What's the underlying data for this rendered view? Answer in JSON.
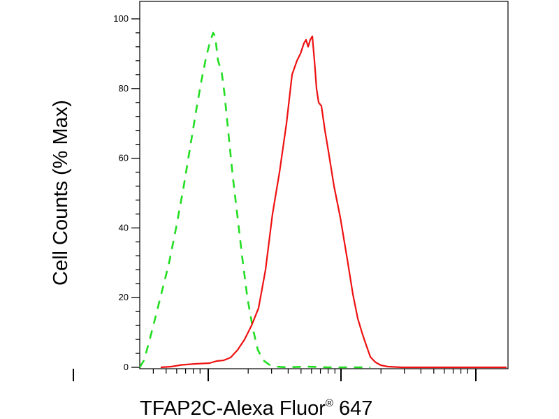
{
  "chart_data": {
    "type": "line",
    "xlabel": "TFAP2C-Alexa Fluor",
    "xlabel_superscript": "®",
    "xlabel_suffix": " 647",
    "ylabel": "Cell Counts (% Max)",
    "x_scale": "log",
    "ylim": [
      0,
      100
    ],
    "y_ticks": [
      {
        "value": 0,
        "label": "0"
      },
      {
        "value": 20,
        "label": "20"
      },
      {
        "value": 40,
        "label": "40"
      },
      {
        "value": 60,
        "label": "60"
      },
      {
        "value": 80,
        "label": "80"
      },
      {
        "value": 100,
        "label": "100"
      }
    ],
    "grid": false,
    "legend": "none",
    "series": [
      {
        "color": "#22dd22",
        "style": "dashed",
        "points": [
          [
            200,
            0
          ],
          [
            206,
            2
          ],
          [
            213,
            7
          ],
          [
            222,
            14
          ],
          [
            232,
            22
          ],
          [
            242,
            30
          ],
          [
            252,
            40
          ],
          [
            263,
            52
          ],
          [
            272,
            63
          ],
          [
            281,
            74
          ],
          [
            288,
            82
          ],
          [
            295,
            89
          ],
          [
            300,
            93
          ],
          [
            305,
            96
          ],
          [
            308,
            95
          ],
          [
            312,
            88
          ],
          [
            317,
            85
          ],
          [
            321,
            79
          ],
          [
            327,
            67
          ],
          [
            333,
            55
          ],
          [
            340,
            43
          ],
          [
            347,
            31
          ],
          [
            354,
            20
          ],
          [
            362,
            11
          ],
          [
            369,
            5
          ],
          [
            377,
            2
          ],
          [
            385,
            0.8
          ],
          [
            395,
            0.2
          ],
          [
            410,
            0
          ],
          [
            440,
            0.2
          ],
          [
            470,
            0
          ],
          [
            500,
            0
          ],
          [
            530,
            0
          ]
        ]
      },
      {
        "color": "#ee1111",
        "style": "solid",
        "points": [
          [
            230,
            0
          ],
          [
            245,
            0.2
          ],
          [
            260,
            0.7
          ],
          [
            280,
            1
          ],
          [
            300,
            1.2
          ],
          [
            310,
            1.8
          ],
          [
            320,
            2
          ],
          [
            330,
            2.8
          ],
          [
            340,
            5
          ],
          [
            350,
            8
          ],
          [
            360,
            12
          ],
          [
            370,
            17
          ],
          [
            380,
            28
          ],
          [
            390,
            44
          ],
          [
            400,
            56
          ],
          [
            410,
            70
          ],
          [
            418,
            84
          ],
          [
            425,
            88
          ],
          [
            430,
            90
          ],
          [
            435,
            93
          ],
          [
            438,
            94
          ],
          [
            441,
            92
          ],
          [
            444,
            94
          ],
          [
            447,
            95
          ],
          [
            450,
            88
          ],
          [
            453,
            80
          ],
          [
            456,
            76
          ],
          [
            460,
            75
          ],
          [
            465,
            68
          ],
          [
            470,
            62
          ],
          [
            478,
            52
          ],
          [
            487,
            43
          ],
          [
            497,
            31
          ],
          [
            505,
            21
          ],
          [
            512,
            14
          ],
          [
            518,
            10
          ],
          [
            523,
            7
          ],
          [
            530,
            3
          ],
          [
            537,
            1.5
          ],
          [
            545,
            0.6
          ],
          [
            555,
            0.2
          ],
          [
            575,
            0
          ],
          [
            610,
            0
          ],
          [
            660,
            0
          ],
          [
            725,
            0
          ]
        ]
      }
    ]
  }
}
